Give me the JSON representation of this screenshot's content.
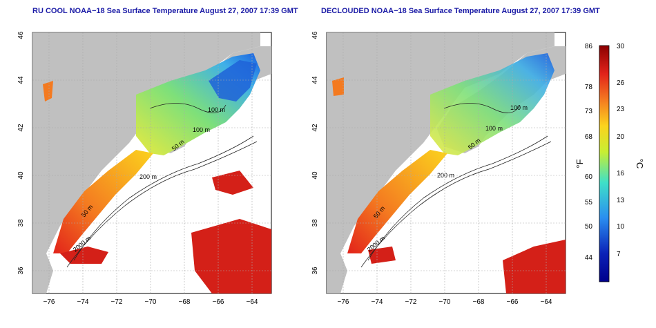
{
  "maps": [
    {
      "title": "RU COOL NOAA−18 Sea Surface Temperature August 27, 2007 17:39 GMT",
      "lon_ticks": [
        "−76",
        "−74",
        "−72",
        "−70",
        "−68",
        "−66",
        "−64"
      ],
      "lat_ticks": [
        "36",
        "38",
        "40",
        "42",
        "44",
        "46"
      ],
      "contour_labels": [
        "100 m",
        "100 m",
        "50 m",
        "200 m",
        "50 m",
        "2000 m"
      ]
    },
    {
      "title": "DECLOUDED NOAA−18 Sea Surface Temperature August 27, 2007 17:39 GMT",
      "lon_ticks": [
        "−76",
        "−74",
        "−72",
        "−70",
        "−68",
        "−66",
        "−64"
      ],
      "lat_ticks": [
        "36",
        "38",
        "40",
        "42",
        "44",
        "46"
      ],
      "contour_labels": [
        "100 m",
        "100 m",
        "50 m",
        "200 m",
        "50 m",
        "2000 m"
      ]
    }
  ],
  "colorbar": {
    "fahrenheit_label": "°F",
    "celsius_label": "°C",
    "fahrenheit_ticks": [
      "86",
      "78",
      "73",
      "68",
      "60",
      "55",
      "50",
      "44"
    ],
    "celsius_ticks": [
      "30",
      "26",
      "23",
      "20",
      "16",
      "13",
      "10",
      "7"
    ],
    "colors": [
      "#8b0000",
      "#e2231a",
      "#f47a20",
      "#fbd31e",
      "#c8ee32",
      "#3fe0c8",
      "#2a8ef0",
      "#0b22b8",
      "#00008b"
    ]
  }
}
